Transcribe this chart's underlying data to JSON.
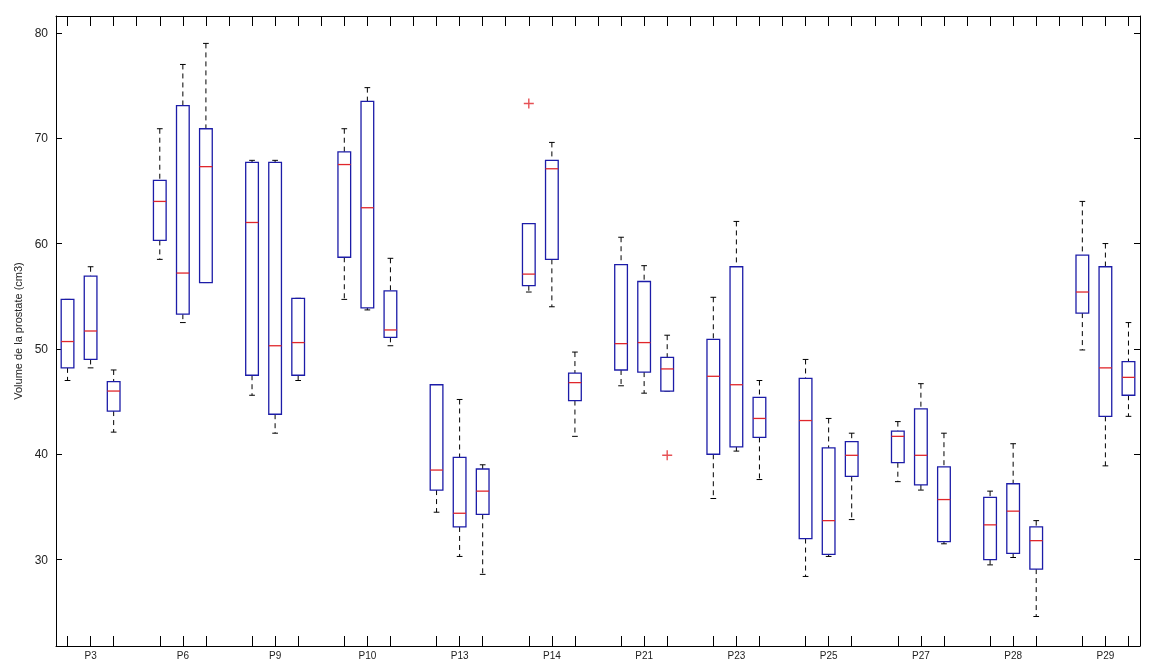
{
  "chart_data": {
    "type": "box",
    "ylabel": "Volume de la prostate (cm3)",
    "categories": [
      null,
      "P3",
      null,
      null,
      null,
      "P6",
      null,
      null,
      null,
      "P9",
      null,
      null,
      null,
      "P10",
      null,
      null,
      null,
      "P13",
      null,
      null,
      null,
      "P14",
      null,
      null,
      null,
      "P21",
      null,
      null,
      null,
      "P23",
      null,
      null,
      null,
      "P25",
      null,
      null,
      null,
      "P27",
      null,
      null,
      null,
      "P28",
      null,
      null,
      null,
      "P29",
      null
    ],
    "ylim": [
      21.8,
      81.6
    ],
    "yticks": [
      30,
      40,
      50,
      60,
      70,
      80
    ],
    "grid": false,
    "series": [
      {
        "color": "#1c1ca8",
        "boxes": [
          {
            "low": 47.0,
            "q1": 48.2,
            "median": 50.7,
            "q3": 54.7,
            "high": 54.7
          },
          {
            "low": 48.2,
            "q1": 49.0,
            "median": 51.7,
            "q3": 56.9,
            "high": 57.8
          },
          {
            "low": 42.1,
            "q1": 44.1,
            "median": 46.0,
            "q3": 46.9,
            "high": 48.0
          },
          null,
          {
            "low": 58.5,
            "q1": 60.3,
            "median": 64.0,
            "q3": 66.0,
            "high": 70.9
          },
          {
            "low": 52.5,
            "q1": 53.3,
            "median": 57.2,
            "q3": 73.1,
            "high": 77.0
          },
          {
            "low": 56.3,
            "q1": 56.3,
            "median": 67.3,
            "q3": 70.9,
            "high": 79.0
          },
          null,
          {
            "low": 45.6,
            "q1": 47.5,
            "median": 62.0,
            "q3": 67.7,
            "high": 67.9
          },
          {
            "low": 42.0,
            "q1": 43.8,
            "median": 50.3,
            "q3": 67.7,
            "high": 67.9
          },
          {
            "low": 47.0,
            "q1": 47.5,
            "median": 50.6,
            "q3": 54.8,
            "high": 54.8
          },
          null,
          {
            "low": 54.7,
            "q1": 58.7,
            "median": 67.5,
            "q3": 68.7,
            "high": 70.9
          },
          {
            "low": 53.7,
            "q1": 53.9,
            "median": 63.4,
            "q3": 73.5,
            "high": 74.8
          },
          {
            "low": 50.3,
            "q1": 51.1,
            "median": 51.8,
            "q3": 55.5,
            "high": 58.6
          },
          null,
          {
            "low": 34.5,
            "q1": 36.6,
            "median": 38.5,
            "q3": 46.6,
            "high": 46.6
          },
          {
            "low": 30.3,
            "q1": 33.1,
            "median": 34.4,
            "q3": 39.7,
            "high": 45.2
          },
          {
            "low": 28.6,
            "q1": 34.3,
            "median": 36.5,
            "q3": 38.6,
            "high": 39.0
          },
          null,
          {
            "low": 55.4,
            "q1": 56.0,
            "median": 57.1,
            "q3": 61.9,
            "high": 61.9,
            "outliers": [
              73.3
            ]
          },
          {
            "low": 54.0,
            "q1": 58.5,
            "median": 67.1,
            "q3": 67.9,
            "high": 69.6
          },
          {
            "low": 41.7,
            "q1": 45.1,
            "median": 46.8,
            "q3": 47.7,
            "high": 49.7
          },
          null,
          {
            "low": 46.5,
            "q1": 48.0,
            "median": 50.5,
            "q3": 58.0,
            "high": 60.6
          },
          {
            "low": 45.8,
            "q1": 47.8,
            "median": 50.6,
            "q3": 56.4,
            "high": 57.9
          },
          {
            "low": 46.0,
            "q1": 46.0,
            "median": 48.1,
            "q3": 49.2,
            "high": 51.3,
            "outliers": [
              39.9
            ]
          },
          null,
          {
            "low": 35.8,
            "q1": 40.0,
            "median": 47.4,
            "q3": 50.9,
            "high": 54.9
          },
          {
            "low": 40.3,
            "q1": 40.7,
            "median": 46.6,
            "q3": 57.8,
            "high": 62.1
          },
          {
            "low": 37.6,
            "q1": 41.6,
            "median": 43.4,
            "q3": 45.4,
            "high": 47.0
          },
          null,
          {
            "low": 28.4,
            "q1": 32.0,
            "median": 43.2,
            "q3": 47.2,
            "high": 49.0
          },
          {
            "low": 30.3,
            "q1": 30.5,
            "median": 33.7,
            "q3": 40.6,
            "high": 43.4
          },
          {
            "low": 33.8,
            "q1": 37.9,
            "median": 39.9,
            "q3": 41.2,
            "high": 42.0
          },
          null,
          {
            "low": 37.4,
            "q1": 39.2,
            "median": 41.7,
            "q3": 42.2,
            "high": 43.1
          },
          {
            "low": 36.6,
            "q1": 37.1,
            "median": 39.9,
            "q3": 44.3,
            "high": 46.7
          },
          {
            "low": 31.5,
            "q1": 31.7,
            "median": 35.7,
            "q3": 38.8,
            "high": 42.0
          },
          null,
          {
            "low": 29.5,
            "q1": 30.0,
            "median": 33.3,
            "q3": 35.9,
            "high": 36.5
          },
          {
            "low": 30.2,
            "q1": 30.6,
            "median": 34.6,
            "q3": 37.2,
            "high": 41.0
          },
          {
            "low": 24.6,
            "q1": 29.1,
            "median": 31.8,
            "q3": 33.1,
            "high": 33.7
          },
          null,
          {
            "low": 49.9,
            "q1": 53.4,
            "median": 55.4,
            "q3": 58.9,
            "high": 64.0
          },
          {
            "low": 38.9,
            "q1": 43.6,
            "median": 48.2,
            "q3": 57.8,
            "high": 60.0
          },
          {
            "low": 43.6,
            "q1": 45.6,
            "median": 47.3,
            "q3": 48.8,
            "high": 52.5
          }
        ]
      }
    ]
  }
}
